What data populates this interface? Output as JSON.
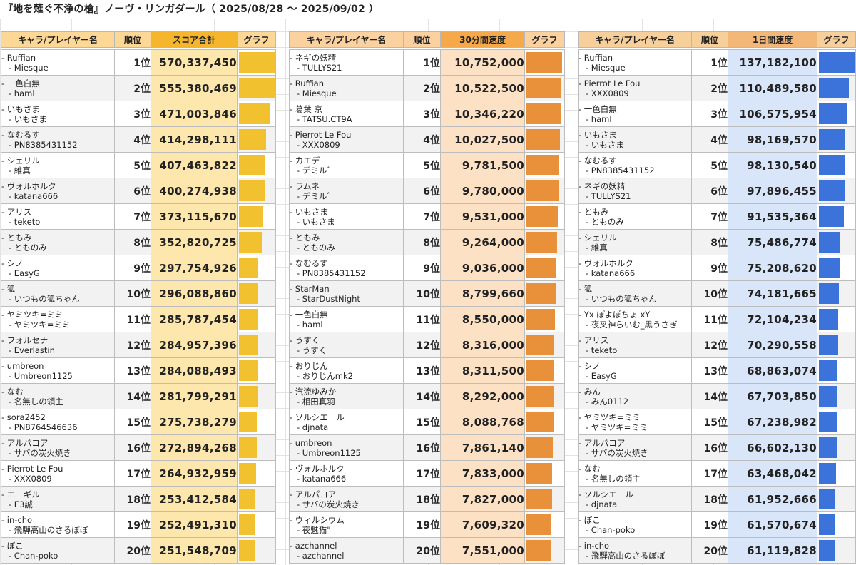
{
  "title": "『地を薙ぐ不浄の槍』ノーヴ・リンガダール（ 2025/08/28 ～ 2025/09/02 ）",
  "tables": [
    {
      "headers": {
        "name": "キャラ/プレイヤー名",
        "rank": "順位",
        "score": "スコア合計",
        "graph": "グラフ"
      },
      "rows": [
        {
          "char": "- Ruffian",
          "player": "- Miesque",
          "rank": "1位",
          "value": "570,337,450",
          "num": 570337450
        },
        {
          "char": "- 一色白無",
          "player": "- haml",
          "rank": "2位",
          "value": "555,380,469",
          "num": 555380469
        },
        {
          "char": "- いもさま",
          "player": "- いもさま",
          "rank": "3位",
          "value": "471,003,846",
          "num": 471003846
        },
        {
          "char": "- なむるす",
          "player": "- PN8385431152",
          "rank": "4位",
          "value": "414,298,111",
          "num": 414298111
        },
        {
          "char": "- シェリル",
          "player": "- 維真",
          "rank": "5位",
          "value": "407,463,822",
          "num": 407463822
        },
        {
          "char": "- ヴォルホルク",
          "player": "- katana666",
          "rank": "6位",
          "value": "400,274,938",
          "num": 400274938
        },
        {
          "char": "- アリス",
          "player": "- teketo",
          "rank": "7位",
          "value": "373,115,670",
          "num": 373115670
        },
        {
          "char": "- ともみ",
          "player": "- とものみ",
          "rank": "8位",
          "value": "352,820,725",
          "num": 352820725
        },
        {
          "char": "- シノ",
          "player": "- EasyG",
          "rank": "9位",
          "value": "297,754,926",
          "num": 297754926
        },
        {
          "char": "- 狐",
          "player": "- いつもの狐ちゃん",
          "rank": "10位",
          "value": "296,088,860",
          "num": 296088860
        },
        {
          "char": "- ヤミツキ=ミミ",
          "player": "- ヤミツキ=ミミ",
          "rank": "11位",
          "value": "285,787,454",
          "num": 285787454
        },
        {
          "char": "- フォルセナ",
          "player": "- Everlastin",
          "rank": "12位",
          "value": "284,957,396",
          "num": 284957396
        },
        {
          "char": "- umbreon",
          "player": "- Umbreon1125",
          "rank": "13位",
          "value": "284,088,493",
          "num": 284088493
        },
        {
          "char": "- なむ",
          "player": "- 名無しの領主",
          "rank": "14位",
          "value": "281,799,291",
          "num": 281799291
        },
        {
          "char": "- sora2452",
          "player": "- PN8764546636",
          "rank": "15位",
          "value": "275,738,279",
          "num": 275738279
        },
        {
          "char": "- アルパコア",
          "player": "- サバの炭火焼き",
          "rank": "16位",
          "value": "272,894,268",
          "num": 272894268
        },
        {
          "char": "- Pierrot Le Fou",
          "player": "- XXX0809",
          "rank": "17位",
          "value": "264,932,959",
          "num": 264932959
        },
        {
          "char": "- エーギル",
          "player": "- E3誠",
          "rank": "18位",
          "value": "253,412,584",
          "num": 253412584
        },
        {
          "char": "- in-cho",
          "player": "- 飛騨高山のさるぼぼ",
          "rank": "19位",
          "value": "252,491,310",
          "num": 252491310
        },
        {
          "char": "- ぼこ",
          "player": "- Chan-poko",
          "rank": "20位",
          "value": "251,548,709",
          "num": 251548709
        }
      ]
    },
    {
      "headers": {
        "name": "キャラ/プレイヤー名",
        "rank": "順位",
        "score": "30分間速度",
        "graph": "グラフ"
      },
      "rows": [
        {
          "char": "- ネギの妖精",
          "player": "- TULLYS21",
          "rank": "1位",
          "value": "10,752,000",
          "num": 10752000
        },
        {
          "char": "- Ruffian",
          "player": "- Miesque",
          "rank": "2位",
          "value": "10,522,500",
          "num": 10522500
        },
        {
          "char": "- 葛葉 京",
          "player": "- TATSU.CT9A",
          "rank": "3位",
          "value": "10,346,220",
          "num": 10346220
        },
        {
          "char": "- Pierrot Le Fou",
          "player": "- XXX0809",
          "rank": "4位",
          "value": "10,027,500",
          "num": 10027500
        },
        {
          "char": "- カエデ",
          "player": "- デミル゛",
          "rank": "5位",
          "value": "9,781,500",
          "num": 9781500
        },
        {
          "char": "- ラムネ",
          "player": "- デミル゛",
          "rank": "6位",
          "value": "9,780,000",
          "num": 9780000
        },
        {
          "char": "- いもさま",
          "player": "- いもさま",
          "rank": "7位",
          "value": "9,531,000",
          "num": 9531000
        },
        {
          "char": "- ともみ",
          "player": "- とものみ",
          "rank": "8位",
          "value": "9,264,000",
          "num": 9264000
        },
        {
          "char": "- なむるす",
          "player": "- PN8385431152",
          "rank": "9位",
          "value": "9,036,000",
          "num": 9036000
        },
        {
          "char": "- StarMan",
          "player": "- StarDustNight",
          "rank": "10位",
          "value": "8,799,660",
          "num": 8799660
        },
        {
          "char": "- 一色白無",
          "player": "- haml",
          "rank": "11位",
          "value": "8,550,000",
          "num": 8550000
        },
        {
          "char": "- うすく",
          "player": "- うすく",
          "rank": "12位",
          "value": "8,316,000",
          "num": 8316000
        },
        {
          "char": "- おりじん",
          "player": "- おりじんmk2",
          "rank": "13位",
          "value": "8,311,500",
          "num": 8311500
        },
        {
          "char": "- 汽流ゆみか",
          "player": "- 相田真羽",
          "rank": "14位",
          "value": "8,292,000",
          "num": 8292000
        },
        {
          "char": "- ソルシエール",
          "player": "- djnata",
          "rank": "15位",
          "value": "8,088,768",
          "num": 8088768
        },
        {
          "char": "- umbreon",
          "player": "- Umbreon1125",
          "rank": "16位",
          "value": "7,861,140",
          "num": 7861140
        },
        {
          "char": "- ヴォルホルク",
          "player": "- katana666",
          "rank": "17位",
          "value": "7,833,000",
          "num": 7833000
        },
        {
          "char": "- アルパコア",
          "player": "- サバの炭火焼き",
          "rank": "18位",
          "value": "7,827,000",
          "num": 7827000
        },
        {
          "char": "- ウィルシウム",
          "player": "- 夜魅猫\"",
          "rank": "19位",
          "value": "7,609,320",
          "num": 7609320
        },
        {
          "char": "- azchannel",
          "player": "- azchannel",
          "rank": "20位",
          "value": "7,551,000",
          "num": 7551000
        }
      ]
    },
    {
      "headers": {
        "name": "キャラ/プレイヤー名",
        "rank": "順位",
        "score": "1日間速度",
        "graph": "グラフ"
      },
      "rows": [
        {
          "char": "- Ruffian",
          "player": "- Miesque",
          "rank": "1位",
          "value": "137,182,100",
          "num": 137182100
        },
        {
          "char": "- Pierrot Le Fou",
          "player": "- XXX0809",
          "rank": "2位",
          "value": "110,489,580",
          "num": 110489580
        },
        {
          "char": "- 一色白無",
          "player": "- haml",
          "rank": "3位",
          "value": "106,575,954",
          "num": 106575954
        },
        {
          "char": "- いもさま",
          "player": "- いもさま",
          "rank": "4位",
          "value": "98,169,570",
          "num": 98169570
        },
        {
          "char": "- なむるす",
          "player": "- PN8385431152",
          "rank": "5位",
          "value": "98,130,540",
          "num": 98130540
        },
        {
          "char": "- ネギの妖精",
          "player": "- TULLYS21",
          "rank": "6位",
          "value": "97,896,455",
          "num": 97896455
        },
        {
          "char": "- ともみ",
          "player": "- とものみ",
          "rank": "7位",
          "value": "91,535,364",
          "num": 91535364
        },
        {
          "char": "- シェリル",
          "player": "- 維真",
          "rank": "8位",
          "value": "75,486,774",
          "num": 75486774
        },
        {
          "char": "- ヴォルホルク",
          "player": "- katana666",
          "rank": "9位",
          "value": "75,208,620",
          "num": 75208620
        },
        {
          "char": "- 狐",
          "player": "- いつもの狐ちゃん",
          "rank": "10位",
          "value": "74,181,665",
          "num": 74181665
        },
        {
          "char": "- Yx ぽよぽちょ xY",
          "player": "- 夜叉神らいむ_黒うさぎ",
          "rank": "11位",
          "value": "72,104,234",
          "num": 72104234
        },
        {
          "char": "- アリス",
          "player": "- teketo",
          "rank": "12位",
          "value": "70,290,558",
          "num": 70290558
        },
        {
          "char": "- シノ",
          "player": "- EasyG",
          "rank": "13位",
          "value": "68,863,074",
          "num": 68863074
        },
        {
          "char": "- みん",
          "player": "- みん0112",
          "rank": "14位",
          "value": "67,703,850",
          "num": 67703850
        },
        {
          "char": "- ヤミツキ=ミミ",
          "player": "- ヤミツキ=ミミ",
          "rank": "15位",
          "value": "67,238,982",
          "num": 67238982
        },
        {
          "char": "- アルパコア",
          "player": "- サバの炭火焼き",
          "rank": "16位",
          "value": "66,602,130",
          "num": 66602130
        },
        {
          "char": "- なむ",
          "player": "- 名無しの領主",
          "rank": "17位",
          "value": "63,468,042",
          "num": 63468042
        },
        {
          "char": "- ソルシエール",
          "player": "- djnata",
          "rank": "18位",
          "value": "61,952,666",
          "num": 61952666
        },
        {
          "char": "- ぼこ",
          "player": "- Chan-poko",
          "rank": "19位",
          "value": "61,570,674",
          "num": 61570674
        },
        {
          "char": "- in-cho",
          "player": "- 飛騨高山のさるぼぼ",
          "rank": "20位",
          "value": "61,119,828",
          "num": 61119828
        }
      ]
    }
  ]
}
